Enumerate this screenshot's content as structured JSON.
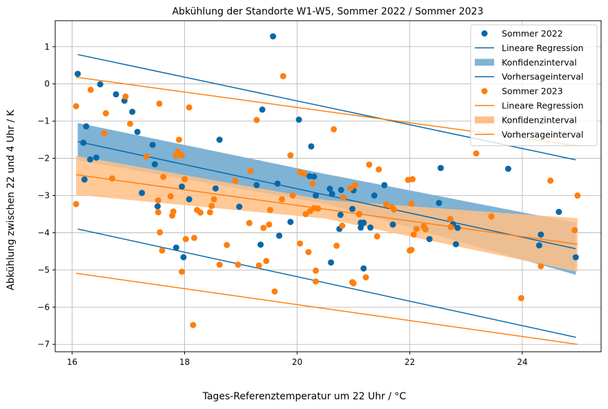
{
  "chart_data": {
    "type": "scatter",
    "title": "Abkühlung der Standorte W1-W5, Sommer 2022 / Sommer 2023",
    "xlabel": "Tages-Referenztemperatur um 22 Uhr / °C",
    "ylabel": "Abkühlung zwischen 22 und 4 Uhr / K",
    "xlim": [
      15.7,
      25.4
    ],
    "ylim": [
      -7.2,
      1.7
    ],
    "xticks": [
      16,
      18,
      20,
      22,
      24
    ],
    "yticks": [
      1,
      0,
      -1,
      -2,
      -3,
      -4,
      -5,
      -6,
      -7
    ],
    "grid": true,
    "legend_position": "top-right",
    "colors": {
      "s2022": "#0868a8",
      "s2022_band": "#7fb2d3",
      "s2023": "#ff7f0e",
      "s2023_band": "#ffbf86"
    },
    "series": [
      {
        "name": "Sommer 2022",
        "color": "#0868a8",
        "points": [
          [
            16.1,
            0.27
          ],
          [
            16.2,
            -1.58
          ],
          [
            16.22,
            -2.57
          ],
          [
            16.25,
            -1.14
          ],
          [
            16.32,
            -2.03
          ],
          [
            16.43,
            -1.98
          ],
          [
            16.5,
            -0.01
          ],
          [
            16.78,
            -0.28
          ],
          [
            16.93,
            -0.45
          ],
          [
            17.07,
            -0.75
          ],
          [
            17.16,
            -1.29
          ],
          [
            17.24,
            -2.93
          ],
          [
            17.43,
            -1.64
          ],
          [
            17.47,
            -2.16
          ],
          [
            17.52,
            -3.29
          ],
          [
            17.95,
            -2.76
          ],
          [
            17.85,
            -4.4
          ],
          [
            17.98,
            -4.66
          ],
          [
            18.08,
            -3.1
          ],
          [
            18.55,
            -2.81
          ],
          [
            18.62,
            -1.5
          ],
          [
            18.97,
            -3.3
          ],
          [
            19.28,
            -2.72
          ],
          [
            19.35,
            -4.32
          ],
          [
            19.38,
            -0.69
          ],
          [
            19.57,
            1.28
          ],
          [
            19.65,
            -2.68
          ],
          [
            19.68,
            -4.08
          ],
          [
            19.88,
            -3.71
          ],
          [
            20.03,
            -0.96
          ],
          [
            20.22,
            -2.48
          ],
          [
            20.25,
            -1.68
          ],
          [
            20.3,
            -2.49
          ],
          [
            20.33,
            -3.0
          ],
          [
            20.58,
            -2.82
          ],
          [
            20.6,
            -4.8
          ],
          [
            20.62,
            -2.96
          ],
          [
            20.75,
            -3.9
          ],
          [
            20.77,
            -3.52
          ],
          [
            20.78,
            -2.85
          ],
          [
            20.98,
            -3.36
          ],
          [
            21.0,
            -2.86
          ],
          [
            21.1,
            -3.5
          ],
          [
            21.13,
            -3.73
          ],
          [
            21.13,
            -3.86
          ],
          [
            21.18,
            -3.73
          ],
          [
            21.18,
            -4.96
          ],
          [
            21.3,
            -3.86
          ],
          [
            21.37,
            -3.0
          ],
          [
            21.55,
            -2.72
          ],
          [
            21.7,
            -3.78
          ],
          [
            22.35,
            -4.17
          ],
          [
            22.52,
            -3.2
          ],
          [
            22.55,
            -2.26
          ],
          [
            22.77,
            -3.77
          ],
          [
            22.82,
            -4.31
          ],
          [
            22.85,
            -3.87
          ],
          [
            23.75,
            -2.28
          ],
          [
            24.3,
            -4.34
          ],
          [
            24.33,
            -4.05
          ],
          [
            24.65,
            -3.44
          ],
          [
            24.95,
            -4.66
          ]
        ],
        "regression": {
          "x": [
            16.1,
            24.95
          ],
          "y": [
            -1.55,
            -4.43
          ]
        },
        "confidence_upper": [
          [
            16.1,
            -1.05
          ],
          [
            20.5,
            -2.42
          ],
          [
            24.95,
            -3.73
          ]
        ],
        "confidence_lower": [
          [
            16.1,
            -2.05
          ],
          [
            20.5,
            -3.22
          ],
          [
            24.95,
            -5.13
          ]
        ],
        "prediction": {
          "upper": [
            [
              16.1,
              0.79
            ],
            [
              24.95,
              -2.04
            ]
          ],
          "lower": [
            [
              16.1,
              -3.9
            ],
            [
              24.95,
              -6.81
            ]
          ]
        }
      },
      {
        "name": "Sommer 2023",
        "color": "#ff7f0e",
        "points": [
          [
            16.07,
            -0.6
          ],
          [
            16.07,
            -3.23
          ],
          [
            16.33,
            -0.16
          ],
          [
            16.57,
            -1.33
          ],
          [
            16.6,
            -0.79
          ],
          [
            16.71,
            -2.54
          ],
          [
            16.95,
            -0.34
          ],
          [
            17.03,
            -1.07
          ],
          [
            17.32,
            -1.95
          ],
          [
            17.53,
            -3.13
          ],
          [
            17.53,
            -3.45
          ],
          [
            17.55,
            -0.53
          ],
          [
            17.56,
            -3.99
          ],
          [
            17.6,
            -4.48
          ],
          [
            17.62,
            -2.5
          ],
          [
            17.75,
            -3.02
          ],
          [
            17.78,
            -3.54
          ],
          [
            17.8,
            -3.43
          ],
          [
            17.85,
            -1.93
          ],
          [
            17.88,
            -1.82
          ],
          [
            17.9,
            -1.5
          ],
          [
            17.95,
            -1.92
          ],
          [
            17.95,
            -5.05
          ],
          [
            18.0,
            -2.56
          ],
          [
            18.02,
            -4.17
          ],
          [
            18.08,
            -0.63
          ],
          [
            18.15,
            -6.48
          ],
          [
            18.17,
            -4.14
          ],
          [
            18.22,
            -3.39
          ],
          [
            18.28,
            -3.46
          ],
          [
            18.45,
            -3.45
          ],
          [
            18.48,
            -3.28
          ],
          [
            18.52,
            -3.1
          ],
          [
            18.62,
            -4.86
          ],
          [
            18.75,
            -4.33
          ],
          [
            18.9,
            -2.6
          ],
          [
            18.95,
            -4.86
          ],
          [
            19.15,
            -3.74
          ],
          [
            19.17,
            -2.34
          ],
          [
            19.28,
            -0.97
          ],
          [
            19.32,
            -4.88
          ],
          [
            19.4,
            -3.87
          ],
          [
            19.45,
            -4.76
          ],
          [
            19.5,
            -3.78
          ],
          [
            19.52,
            -3.39
          ],
          [
            19.6,
            -5.58
          ],
          [
            19.73,
            -3.1
          ],
          [
            19.75,
            0.21
          ],
          [
            19.88,
            -1.92
          ],
          [
            19.92,
            -3.0
          ],
          [
            20.05,
            -4.29
          ],
          [
            20.05,
            -2.37
          ],
          [
            20.12,
            -2.42
          ],
          [
            20.15,
            -3.5
          ],
          [
            20.2,
            -4.52
          ],
          [
            20.23,
            -3.42
          ],
          [
            20.27,
            -2.68
          ],
          [
            20.3,
            -3.34
          ],
          [
            20.33,
            -5.02
          ],
          [
            20.33,
            -5.31
          ],
          [
            20.37,
            -3.35
          ],
          [
            20.65,
            -1.22
          ],
          [
            20.7,
            -4.35
          ],
          [
            20.8,
            -3.81
          ],
          [
            20.82,
            -3.05
          ],
          [
            20.95,
            -2.8
          ],
          [
            20.98,
            -5.33
          ],
          [
            21.0,
            -5.36
          ],
          [
            21.03,
            -2.72
          ],
          [
            21.1,
            -3.5
          ],
          [
            21.22,
            -5.2
          ],
          [
            21.28,
            -2.17
          ],
          [
            21.42,
            -4.1
          ],
          [
            21.45,
            -2.3
          ],
          [
            21.58,
            -3.24
          ],
          [
            21.68,
            -3.3
          ],
          [
            21.72,
            -3.38
          ],
          [
            21.97,
            -2.58
          ],
          [
            22.0,
            -4.48
          ],
          [
            22.03,
            -4.46
          ],
          [
            22.03,
            -3.22
          ],
          [
            22.05,
            -2.56
          ],
          [
            22.07,
            -4.05
          ],
          [
            22.12,
            -3.9
          ],
          [
            22.25,
            -3.83
          ],
          [
            22.28,
            -3.91
          ],
          [
            22.72,
            -3.63
          ],
          [
            22.73,
            -3.85
          ],
          [
            23.18,
            -1.87
          ],
          [
            23.45,
            -3.56
          ],
          [
            23.98,
            -5.76
          ],
          [
            24.33,
            -4.9
          ],
          [
            24.5,
            -2.6
          ],
          [
            24.93,
            -3.93
          ],
          [
            24.98,
            -3.0
          ]
        ],
        "regression": {
          "x": [
            16.07,
            24.98
          ],
          "y": [
            -2.44,
            -4.31
          ]
        },
        "confidence_upper": [
          [
            16.07,
            -1.93
          ],
          [
            20.5,
            -3.12
          ],
          [
            24.98,
            -3.61
          ]
        ],
        "confidence_lower": [
          [
            16.07,
            -2.98
          ],
          [
            20.5,
            -3.62
          ],
          [
            24.98,
            -5.05
          ]
        ],
        "prediction": {
          "upper": [
            [
              16.07,
              0.18
            ],
            [
              24.98,
              -1.66
            ]
          ],
          "lower": [
            [
              16.07,
              -5.09
            ],
            [
              24.98,
              -7.0
            ]
          ]
        }
      }
    ],
    "legend": [
      {
        "label": "Sommer 2022",
        "kind": "marker",
        "color": "#0868a8"
      },
      {
        "label": "Lineare Regression",
        "kind": "line",
        "color": "#0868a8"
      },
      {
        "label": "Konfidenzinterval",
        "kind": "patch",
        "color": "#0868a8"
      },
      {
        "label": "Vorhersageinterval",
        "kind": "line",
        "color": "#0868a8"
      },
      {
        "label": "Sommer 2023",
        "kind": "marker",
        "color": "#ff7f0e"
      },
      {
        "label": "Lineare Regression",
        "kind": "line",
        "color": "#ff7f0e"
      },
      {
        "label": "Konfidenzinterval",
        "kind": "patch",
        "color": "#ff7f0e"
      },
      {
        "label": "Vorhersageinterval",
        "kind": "line",
        "color": "#ff7f0e"
      }
    ]
  }
}
